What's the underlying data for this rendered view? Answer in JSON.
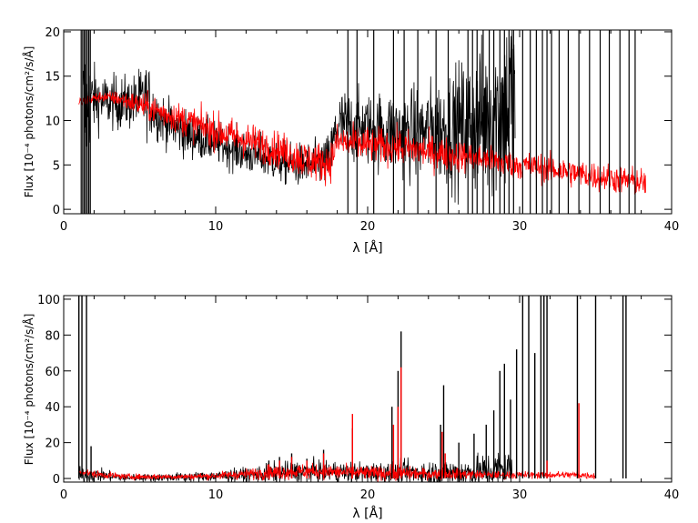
{
  "chart_data": [
    {
      "type": "line",
      "xlabel": "λ [Å]",
      "ylabel": "Flux [10⁻⁴ photons/cm²/s/Å]",
      "xlim": [
        0,
        40
      ],
      "ylim": [
        -0.5,
        20.2
      ],
      "xticks": [
        0,
        10,
        20,
        30,
        40
      ],
      "yticks": [
        0,
        5,
        10,
        15,
        20
      ],
      "series": [
        {
          "color": "#000000",
          "style": "noisy-step",
          "x": [
            1.3,
            1.8,
            2.5,
            3.5,
            4.5,
            5.5,
            6.0,
            7.0,
            8.0,
            9.0,
            10.0,
            11.0,
            12.0,
            13.0,
            14.0,
            15.0,
            16.0,
            17.0,
            17.5,
            18.0,
            19.0,
            20.0,
            21.0,
            22.0,
            23.0,
            24.0,
            25.0,
            26.0,
            27.0,
            28.0,
            29.0,
            29.7
          ],
          "values": [
            10.5,
            12.5,
            12.2,
            12.0,
            12.0,
            12.5,
            11.0,
            9.5,
            8.5,
            8.0,
            7.5,
            7.0,
            6.3,
            6.0,
            5.5,
            5.0,
            5.0,
            5.2,
            5.5,
            9.5,
            9.3,
            9.0,
            8.8,
            8.5,
            8.5,
            8.8,
            9.0,
            9.3,
            9.8,
            10.5,
            11.5,
            13.0
          ],
          "noise": [
            5.0,
            2.0,
            1.5,
            1.5,
            1.5,
            2.0,
            1.5,
            1.3,
            1.3,
            1.2,
            1.2,
            1.2,
            1.2,
            1.2,
            1.2,
            1.2,
            1.2,
            1.3,
            1.5,
            2.0,
            2.0,
            2.0,
            2.2,
            2.5,
            2.5,
            2.7,
            3.0,
            3.5,
            4.0,
            4.5,
            5.0,
            6.0
          ]
        },
        {
          "color": "#ff0000",
          "style": "noisy-step",
          "x": [
            1.0,
            1.5,
            2.5,
            3.5,
            5.0,
            6.0,
            8.0,
            10.0,
            12.0,
            14.0,
            16.0,
            17.5,
            18.0,
            20.0,
            22.0,
            24.0,
            26.0,
            28.0,
            30.0,
            32.0,
            34.0,
            36.0,
            38.0,
            38.3
          ],
          "values": [
            12.0,
            12.3,
            12.7,
            12.5,
            11.8,
            11.2,
            10.0,
            8.8,
            7.8,
            6.8,
            5.5,
            5.2,
            7.6,
            7.3,
            7.0,
            6.5,
            6.0,
            5.5,
            5.0,
            4.5,
            4.0,
            3.5,
            3.0,
            3.0
          ],
          "noise": [
            0.3,
            0.3,
            0.3,
            0.4,
            0.7,
            0.8,
            0.9,
            1.0,
            1.0,
            1.0,
            1.1,
            1.1,
            1.0,
            1.0,
            1.0,
            1.0,
            0.9,
            0.8,
            0.8,
            0.8,
            0.8,
            0.8,
            0.8,
            0.8
          ]
        }
      ],
      "spikes": [
        {
          "color": "#000000",
          "x": [
            1.15,
            1.25,
            1.35,
            1.45,
            1.55,
            1.65,
            1.75,
            18.7,
            19.3,
            20.4,
            21.7,
            22.4,
            23.3,
            24.5,
            25.3,
            26.6,
            26.9,
            27.2,
            27.6,
            28.0,
            28.3,
            28.7,
            29.0,
            29.3,
            29.6,
            30.2,
            30.7,
            31.1,
            31.5,
            31.8,
            32.1,
            32.6,
            33.2,
            33.9,
            34.6,
            35.3,
            35.9,
            36.6,
            37.2,
            37.6
          ]
        }
      ]
    },
    {
      "type": "line",
      "xlabel": "λ [Å]",
      "ylabel": "Flux [10⁻⁴ photons/cm²/s/Å]",
      "xlim": [
        0,
        40
      ],
      "ylim": [
        -2,
        102
      ],
      "xticks": [
        0,
        10,
        20,
        30,
        40
      ],
      "yticks": [
        0,
        20,
        40,
        60,
        80,
        100
      ],
      "series": [
        {
          "color": "#000000",
          "style": "noisy-step",
          "x": [
            1.0,
            2.0,
            4.0,
            6.0,
            8.0,
            10.0,
            12.0,
            14.0,
            16.0,
            18.0,
            20.0,
            22.0,
            24.0,
            26.0,
            28.0,
            29.5
          ],
          "values": [
            1.5,
            2.0,
            0.5,
            0.5,
            0.8,
            1.2,
            2.0,
            3.0,
            4.0,
            3.5,
            3.0,
            3.5,
            3.0,
            3.0,
            4.0,
            6.0
          ],
          "noise": [
            2.5,
            2.0,
            1.0,
            1.0,
            1.3,
            1.5,
            2.0,
            3.0,
            3.0,
            3.0,
            3.0,
            3.0,
            3.5,
            4.0,
            5.0,
            6.0
          ]
        },
        {
          "color": "#ff0000",
          "style": "noisy-step",
          "x": [
            1.0,
            2.0,
            4.0,
            6.0,
            8.0,
            10.0,
            12.0,
            14.0,
            16.0,
            18.0,
            20.0,
            22.0,
            24.0,
            26.0,
            28.0,
            30.0,
            32.0,
            34.0,
            35.0
          ],
          "values": [
            4.0,
            2.5,
            1.0,
            1.0,
            1.0,
            1.5,
            2.5,
            3.5,
            4.0,
            3.5,
            3.0,
            3.0,
            2.5,
            2.5,
            2.0,
            2.0,
            2.0,
            2.0,
            1.5
          ],
          "noise": [
            1.0,
            1.0,
            0.8,
            0.8,
            0.8,
            1.0,
            1.5,
            2.0,
            2.0,
            2.0,
            2.0,
            2.0,
            1.5,
            1.5,
            1.0,
            1.0,
            1.0,
            1.0,
            1.0
          ]
        }
      ],
      "peaks": [
        {
          "color": "#000000",
          "x": [
            1.0,
            1.2,
            1.5,
            1.8,
            13.5,
            14.2,
            15.0,
            16.0,
            17.1,
            19.0,
            21.6,
            22.0,
            22.2,
            24.8,
            25.0,
            26.0,
            27.0,
            27.8,
            28.3,
            28.7,
            29.0,
            29.4,
            29.8,
            30.2,
            30.6,
            31.0,
            31.4,
            31.6,
            31.8,
            33.8,
            35.0,
            36.8,
            37.0
          ],
          "values": [
            102,
            102,
            102,
            18,
            10,
            12,
            14,
            11,
            16,
            28,
            40,
            60,
            82,
            30,
            52,
            20,
            25,
            30,
            38,
            60,
            64,
            44,
            72,
            102,
            102,
            70,
            102,
            102,
            102,
            102,
            102,
            102,
            102
          ]
        },
        {
          "color": "#ff0000",
          "x": [
            13.5,
            14.2,
            15.0,
            16.0,
            17.1,
            19.0,
            21.7,
            22.0,
            22.2,
            24.9,
            25.1,
            31.8,
            33.9
          ],
          "values": [
            8,
            10,
            12,
            10,
            14,
            36,
            30,
            40,
            62,
            26,
            14,
            10,
            42
          ]
        }
      ]
    }
  ]
}
